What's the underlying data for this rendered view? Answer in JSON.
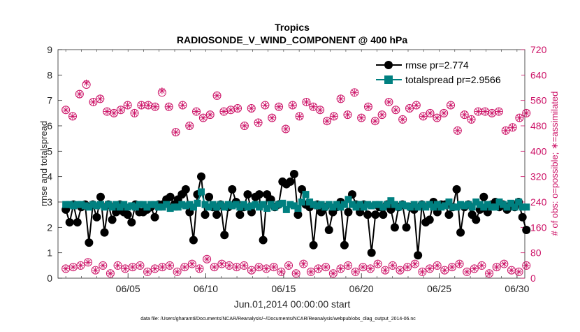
{
  "chart_data": {
    "type": "line",
    "title": "Tropics",
    "subtitle": "RADIOSONDE_V_WIND_COMPONENT @ 400 hPa",
    "xlabel": "Jun.01,2014 00:00:00 start",
    "ylabel_left": "rmse and totalspread",
    "ylabel_right": "# of obs: o=possible; ∗=assimilated",
    "footnote": "data file: /Users/gharamti/Documents/NCAR/Reanalysis/~/Documents/NCAR/Reanalysis/webpub/obs_diag_output_2014-06.nc",
    "x_range_days": [
      0.5,
      30.5
    ],
    "x_ticks": [
      {
        "day": 5,
        "label": "06/05"
      },
      {
        "day": 10,
        "label": "06/10"
      },
      {
        "day": 15,
        "label": "06/15"
      },
      {
        "day": 20,
        "label": "06/20"
      },
      {
        "day": 25,
        "label": "06/25"
      },
      {
        "day": 30,
        "label": "06/30"
      }
    ],
    "ylim_left": [
      0,
      9
    ],
    "yticks_left": [
      "0",
      "1",
      "2",
      "3",
      "4",
      "5",
      "6",
      "7",
      "8",
      "9"
    ],
    "ylim_right": [
      0,
      720
    ],
    "yticks_right": [
      "0",
      "80",
      "160",
      "240",
      "320",
      "400",
      "480",
      "560",
      "640",
      "720"
    ],
    "legend_position": "top-right",
    "colors": {
      "rmse": "#000000",
      "totalspread": "#008080",
      "obs": "#cc1166"
    },
    "series": [
      {
        "name": "rmse pr=2.774",
        "axis": "left",
        "values": [
          2.7,
          2.2,
          2.9,
          2.2,
          2.8,
          2.9,
          1.4,
          2.9,
          2.4,
          3.2,
          1.8,
          2.9,
          2.3,
          2.6,
          2.9,
          2.6,
          2.5,
          2.2,
          2.9,
          2.6,
          2.6,
          2.7,
          2.8,
          2.4,
          2.9,
          2.9,
          3.1,
          3.2,
          2.9,
          3.1,
          3.3,
          3.5,
          2.6,
          1.5,
          3.3,
          4.0,
          2.5,
          3.2,
          2.8,
          2.5,
          2.9,
          1.7,
          2.8,
          3.5,
          3.0,
          2.5,
          2.8,
          3.3,
          2.6,
          3.2,
          3.3,
          1.5,
          3.3,
          3.1,
          2.8,
          2.9,
          3.8,
          3.7,
          3.8,
          4.1,
          2.5,
          3.5,
          2.9,
          2.8,
          1.3,
          2.9,
          2.6,
          2.8,
          1.9,
          2.6,
          2.8,
          3.0,
          1.3,
          2.6,
          3.3,
          2.9,
          2.6,
          2.9,
          2.5,
          1.0,
          2.5,
          2.8,
          2.5,
          2.9,
          2.7,
          2.0,
          2.8,
          2.9,
          2.0,
          2.8,
          2.7,
          0.9,
          2.9,
          2.2,
          2.3,
          3.0,
          2.6,
          2.9,
          2.9,
          2.5,
          2.8,
          3.5,
          1.8,
          2.8,
          2.9,
          2.5,
          2.3,
          2.7,
          3.2,
          2.6,
          2.9,
          3.0,
          2.8,
          2.9,
          2.7,
          2.9,
          2.8,
          3.0,
          2.4,
          1.9
        ],
        "marker": "circle"
      },
      {
        "name": "totalspread pr=2.9566",
        "axis": "left",
        "values": [
          2.9,
          2.9,
          2.85,
          2.9,
          2.9,
          2.85,
          2.8,
          2.9,
          2.85,
          2.9,
          2.8,
          2.9,
          2.8,
          2.9,
          2.8,
          2.9,
          2.8,
          2.85,
          2.8,
          2.9,
          2.9,
          2.8,
          2.9,
          2.9,
          2.8,
          2.8,
          2.9,
          2.75,
          2.8,
          2.8,
          2.9,
          2.85,
          2.9,
          2.8,
          2.95,
          3.4,
          2.9,
          2.8,
          2.9,
          2.8,
          2.9,
          2.8,
          2.9,
          2.85,
          2.9,
          2.8,
          2.9,
          2.8,
          2.85,
          2.9,
          2.8,
          2.9,
          2.75,
          2.9,
          2.8,
          2.9,
          2.95,
          2.7,
          2.9,
          2.85,
          2.75,
          3.0,
          3.3,
          3.0,
          2.9,
          2.85,
          2.9,
          2.8,
          2.9,
          2.8,
          2.9,
          2.8,
          2.9,
          3.1,
          2.9,
          2.8,
          2.9,
          2.8,
          2.9,
          2.85,
          2.9,
          2.9,
          2.8,
          2.9,
          3.05,
          2.9,
          2.8,
          2.9,
          2.85,
          2.8,
          2.9,
          2.8,
          2.9,
          2.8,
          2.9,
          2.8,
          2.9,
          2.8,
          2.85,
          3.0,
          2.8,
          2.8,
          2.9,
          2.85,
          2.9,
          2.8,
          3.0,
          2.9,
          2.8,
          2.9,
          2.8,
          2.8,
          3.0,
          2.9,
          2.8,
          2.95,
          2.8,
          3.0,
          2.8,
          2.8
        ],
        "marker": "square"
      },
      {
        "name": "obs possible",
        "axis": "right",
        "values": [
          530,
          510,
          580,
          610,
          555,
          565,
          525,
          520,
          530,
          545,
          520,
          545,
          545,
          540,
          585,
          540,
          460,
          545,
          480,
          525,
          505,
          515,
          575,
          525,
          530,
          535,
          480,
          535,
          490,
          545,
          505,
          540,
          470,
          545,
          510,
          555,
          540,
          530,
          495,
          510,
          565,
          515,
          585,
          505,
          540,
          495,
          515,
          555,
          530,
          500,
          535,
          545,
          510,
          520,
          505,
          520,
          545,
          465,
          515,
          500,
          525,
          525,
          520,
          525,
          465,
          475,
          505,
          520
        ],
        "marker": "circle-open"
      },
      {
        "name": "obs assimilated",
        "axis": "right",
        "values": [
          530,
          510,
          580,
          615,
          555,
          565,
          525,
          520,
          530,
          545,
          520,
          545,
          545,
          540,
          590,
          540,
          460,
          545,
          480,
          525,
          505,
          515,
          575,
          525,
          530,
          535,
          480,
          535,
          490,
          545,
          505,
          540,
          470,
          545,
          510,
          555,
          540,
          530,
          495,
          510,
          565,
          515,
          585,
          505,
          540,
          495,
          515,
          555,
          530,
          500,
          535,
          545,
          510,
          520,
          505,
          520,
          545,
          465,
          515,
          500,
          525,
          525,
          520,
          525,
          465,
          475,
          505,
          520
        ],
        "marker": "asterisk"
      },
      {
        "name": "obs low possible",
        "axis": "right",
        "values": [
          30,
          35,
          40,
          50,
          25,
          40,
          15,
          40,
          30,
          35,
          40,
          20,
          30,
          35,
          40,
          20,
          35,
          45,
          30,
          60,
          35,
          45,
          40,
          35,
          40,
          25,
          35,
          30,
          35,
          20,
          40,
          15,
          45,
          20,
          30,
          35,
          15,
          30,
          40,
          20,
          35,
          30,
          45,
          25,
          40,
          25,
          35,
          45,
          20,
          30,
          40,
          25,
          35,
          45,
          20,
          30,
          40,
          15,
          35,
          45,
          25,
          20,
          40
        ],
        "marker": "circle-open"
      }
    ]
  }
}
